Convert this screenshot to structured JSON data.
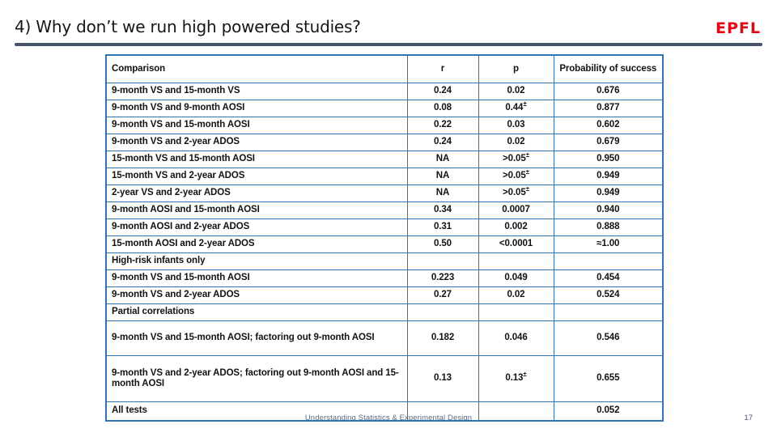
{
  "slide": {
    "title": "4) Why don’t we run high powered studies?",
    "logo": "EPFL",
    "footer": "Understanding Statistics & Experimental Design",
    "page_number": "17"
  },
  "colors": {
    "table_border": "#2E75B6",
    "title_rule": "#44546A",
    "logo_red": "#E30613",
    "footer_text": "#5B6B7C"
  },
  "table": {
    "columns": [
      "Comparison",
      "r",
      "p",
      "Probability of success"
    ],
    "rows": [
      {
        "kind": "data",
        "comparison": "9-month VS and 15-month VS",
        "r": "0.24",
        "p": "0.02",
        "p_sup": "",
        "prob": "0.676"
      },
      {
        "kind": "data",
        "comparison": "9-month VS and 9-month AOSI",
        "r": "0.08",
        "p": "0.44",
        "p_sup": "±",
        "prob": "0.877"
      },
      {
        "kind": "data",
        "comparison": "9-month VS and 15-month AOSI",
        "r": "0.22",
        "p": "0.03",
        "p_sup": "",
        "prob": "0.602"
      },
      {
        "kind": "data",
        "comparison": "9-month VS and 2-year ADOS",
        "r": "0.24",
        "p": "0.02",
        "p_sup": "",
        "prob": "0.679"
      },
      {
        "kind": "data",
        "comparison": "15-month VS and 15-month AOSI",
        "r": "NA",
        "p": ">0.05",
        "p_sup": "±",
        "prob": "0.950"
      },
      {
        "kind": "data",
        "comparison": "15-month VS and 2-year ADOS",
        "r": "NA",
        "p": ">0.05",
        "p_sup": "±",
        "prob": "0.949"
      },
      {
        "kind": "data",
        "comparison": "2-year VS and 2-year ADOS",
        "r": "NA",
        "p": ">0.05",
        "p_sup": "±",
        "prob": "0.949"
      },
      {
        "kind": "data",
        "comparison": "9-month AOSI and 15-month AOSI",
        "r": "0.34",
        "p": "0.0007",
        "p_sup": "",
        "prob": "0.940"
      },
      {
        "kind": "data",
        "comparison": "9-month AOSI and 2-year ADOS",
        "r": "0.31",
        "p": "0.002",
        "p_sup": "",
        "prob": "0.888"
      },
      {
        "kind": "data",
        "comparison": "15-month AOSI and 2-year ADOS",
        "r": "0.50",
        "p": "<0.0001",
        "p_sup": "",
        "prob": "≈1.00"
      },
      {
        "kind": "section",
        "comparison": "High-risk infants only",
        "r": "",
        "p": "",
        "p_sup": "",
        "prob": ""
      },
      {
        "kind": "data",
        "comparison": "9-month VS and 15-month AOSI",
        "r": "0.223",
        "p": "0.049",
        "p_sup": "",
        "prob": "0.454"
      },
      {
        "kind": "data",
        "comparison": "9-month VS and 2-year ADOS",
        "r": "0.27",
        "p": "0.02",
        "p_sup": "",
        "prob": "0.524"
      },
      {
        "kind": "section",
        "comparison": "Partial correlations",
        "r": "",
        "p": "",
        "p_sup": "",
        "prob": ""
      },
      {
        "kind": "tall",
        "comparison": "9-month VS and 15-month AOSI; factoring out 9-month AOSI",
        "r": "0.182",
        "p": "0.046",
        "p_sup": "",
        "prob": "0.546"
      },
      {
        "kind": "tall2",
        "comparison": "9-month VS and 2-year ADOS;  factoring out 9-month AOSI and 15-month AOSI",
        "r": "0.13",
        "p": "0.13",
        "p_sup": "±",
        "prob": "0.655"
      },
      {
        "kind": "last",
        "comparison": "All tests",
        "r": "",
        "p": "",
        "p_sup": "",
        "prob": "0.052"
      }
    ]
  }
}
